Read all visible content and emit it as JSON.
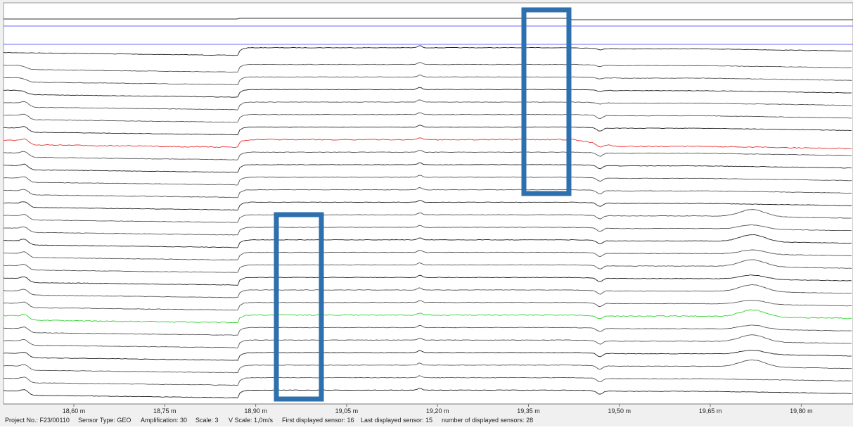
{
  "axis": {
    "labels": [
      "18,60 m",
      "18,75 m",
      "18,90 m",
      "19,05 m",
      "19,20 m",
      "19,35 m",
      "19,50 m",
      "19,65 m",
      "19,80 m"
    ]
  },
  "status_bar": [
    "Project No.: F23/00110",
    "Sensor Type: GEO",
    "Amplification: 30",
    "Scale: 3",
    "V Scale: 1,0m/s",
    "First displayed sensor: 16",
    "Last displayed sensor: 15",
    "number of displayed sensors: 28"
  ]
}
